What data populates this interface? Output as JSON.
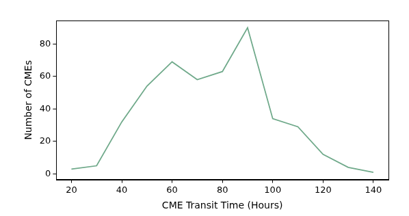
{
  "chart_data": {
    "type": "line",
    "x_label": "CME Transit Time (Hours)",
    "y_label": "Number of CMEs",
    "x": [
      20,
      30,
      40,
      50,
      60,
      70,
      80,
      90,
      100,
      110,
      120,
      130,
      140
    ],
    "values": [
      3,
      5,
      32,
      54,
      69,
      58,
      63,
      90,
      34,
      29,
      12,
      4,
      1
    ],
    "color": "#6fa98a",
    "xlim": [
      14,
      146
    ],
    "xticks": [
      20,
      40,
      60,
      80,
      100,
      120,
      140
    ],
    "ylim": [
      -3.45,
      94.45
    ],
    "yticks": [
      0,
      20,
      40,
      60,
      80
    ],
    "grid": false
  }
}
